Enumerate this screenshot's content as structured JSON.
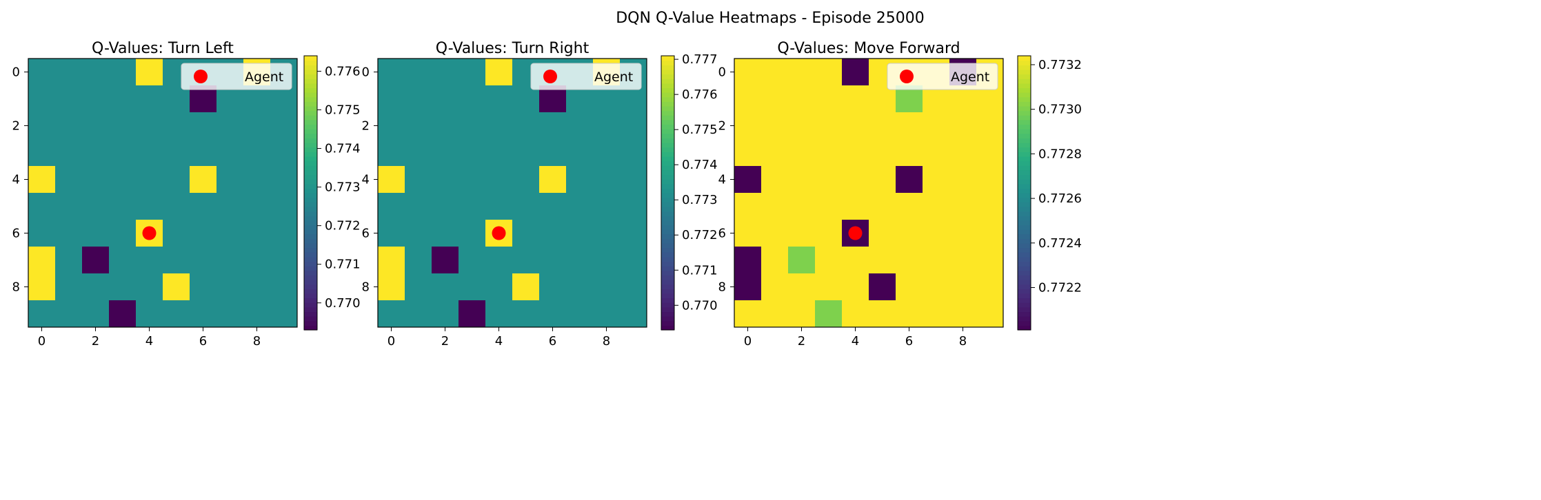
{
  "figure": {
    "suptitle": "DQN Q-Value Heatmaps - Episode 25000"
  },
  "chart_data": [
    {
      "type": "heatmap",
      "title": "Q-Values: Turn Left",
      "grid_size": [
        10,
        10
      ],
      "xticks": [
        "0",
        "2",
        "4",
        "6",
        "8"
      ],
      "yticks": [
        "0",
        "2",
        "4",
        "6",
        "8"
      ],
      "colormap": "viridis",
      "vmin": 0.7693,
      "vmax": 0.7764,
      "base_value": 0.7728,
      "cells": [
        {
          "row": 0,
          "col": 4,
          "value": 0.7764
        },
        {
          "row": 0,
          "col": 8,
          "value": 0.7764
        },
        {
          "row": 1,
          "col": 6,
          "value": 0.7693
        },
        {
          "row": 4,
          "col": 0,
          "value": 0.7764
        },
        {
          "row": 4,
          "col": 6,
          "value": 0.7764
        },
        {
          "row": 6,
          "col": 4,
          "value": 0.7764
        },
        {
          "row": 7,
          "col": 0,
          "value": 0.7764
        },
        {
          "row": 7,
          "col": 2,
          "value": 0.7693
        },
        {
          "row": 8,
          "col": 0,
          "value": 0.7764
        },
        {
          "row": 8,
          "col": 5,
          "value": 0.7764
        },
        {
          "row": 9,
          "col": 3,
          "value": 0.7693
        }
      ],
      "agent": {
        "row": 6,
        "col": 4
      },
      "legend": {
        "label": "Agent",
        "position": "upper right"
      },
      "colorbar": {
        "ticks": [
          "0.770",
          "0.771",
          "0.772",
          "0.773",
          "0.774",
          "0.775",
          "0.776"
        ]
      }
    },
    {
      "type": "heatmap",
      "title": "Q-Values: Turn Right",
      "grid_size": [
        10,
        10
      ],
      "xticks": [
        "0",
        "2",
        "4",
        "6",
        "8"
      ],
      "yticks": [
        "0",
        "2",
        "4",
        "6",
        "8"
      ],
      "colormap": "viridis",
      "vmin": 0.7693,
      "vmax": 0.7771,
      "base_value": 0.7732,
      "cells": [
        {
          "row": 0,
          "col": 4,
          "value": 0.7771
        },
        {
          "row": 0,
          "col": 8,
          "value": 0.7771
        },
        {
          "row": 1,
          "col": 6,
          "value": 0.7693
        },
        {
          "row": 4,
          "col": 0,
          "value": 0.7771
        },
        {
          "row": 4,
          "col": 6,
          "value": 0.7771
        },
        {
          "row": 6,
          "col": 4,
          "value": 0.7771
        },
        {
          "row": 7,
          "col": 0,
          "value": 0.7771
        },
        {
          "row": 7,
          "col": 2,
          "value": 0.7693
        },
        {
          "row": 8,
          "col": 0,
          "value": 0.7771
        },
        {
          "row": 8,
          "col": 5,
          "value": 0.7771
        },
        {
          "row": 9,
          "col": 3,
          "value": 0.7693
        }
      ],
      "agent": {
        "row": 6,
        "col": 4
      },
      "legend": {
        "label": "Agent",
        "position": "upper right"
      },
      "colorbar": {
        "ticks": [
          "0.770",
          "0.771",
          "0.772",
          "0.773",
          "0.774",
          "0.775",
          "0.776",
          "0.777"
        ]
      }
    },
    {
      "type": "heatmap",
      "title": "Q-Values: Move Forward",
      "grid_size": [
        10,
        10
      ],
      "xticks": [
        "0",
        "2",
        "4",
        "6",
        "8"
      ],
      "yticks": [
        "0",
        "2",
        "4",
        "6",
        "8"
      ],
      "colormap": "viridis",
      "vmin": 0.77201,
      "vmax": 0.77324,
      "base_value": 0.77324,
      "cells": [
        {
          "row": 0,
          "col": 4,
          "value": 0.77201
        },
        {
          "row": 0,
          "col": 8,
          "value": 0.77201
        },
        {
          "row": 1,
          "col": 6,
          "value": 0.773
        },
        {
          "row": 4,
          "col": 0,
          "value": 0.77201
        },
        {
          "row": 4,
          "col": 6,
          "value": 0.77201
        },
        {
          "row": 6,
          "col": 4,
          "value": 0.77201
        },
        {
          "row": 7,
          "col": 0,
          "value": 0.77201
        },
        {
          "row": 7,
          "col": 2,
          "value": 0.773
        },
        {
          "row": 8,
          "col": 0,
          "value": 0.77201
        },
        {
          "row": 8,
          "col": 5,
          "value": 0.77201
        },
        {
          "row": 9,
          "col": 3,
          "value": 0.773
        }
      ],
      "agent": {
        "row": 6,
        "col": 4
      },
      "legend": {
        "label": "Agent",
        "position": "upper right"
      },
      "colorbar": {
        "ticks": [
          "0.7722",
          "0.7724",
          "0.7726",
          "0.7728",
          "0.7730",
          "0.7732"
        ]
      }
    }
  ]
}
